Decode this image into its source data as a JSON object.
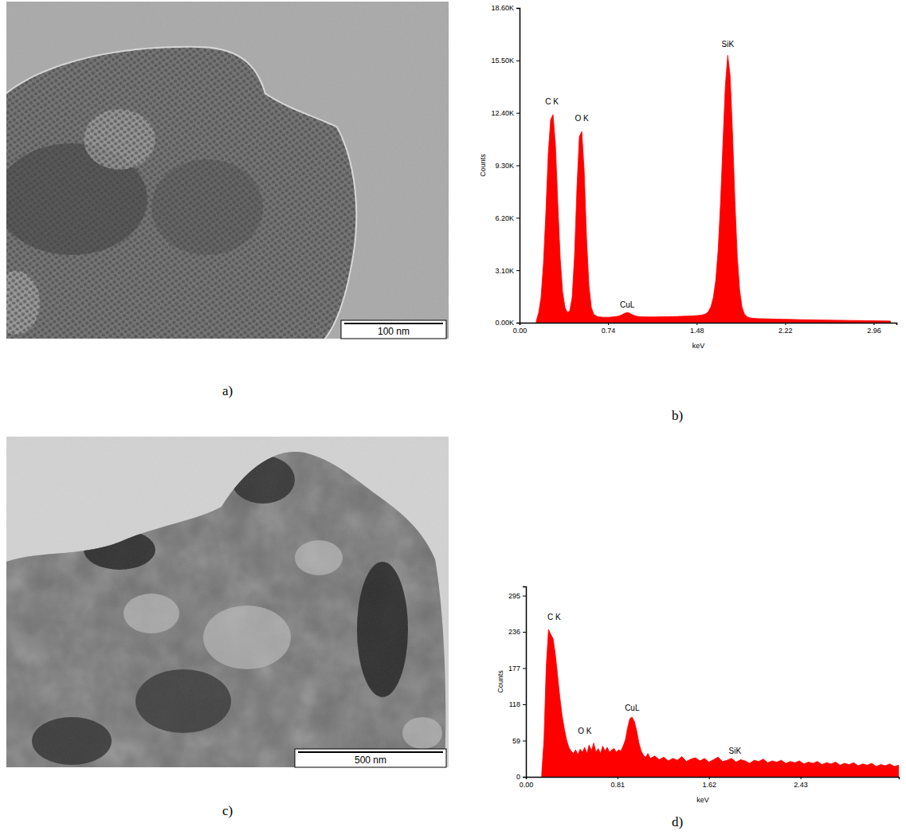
{
  "chart_data": [
    {
      "type": "area",
      "title": "b)",
      "xlabel": "keV",
      "ylabel": "Counts",
      "color": "#ff0000",
      "grid": false,
      "xlim": [
        0,
        3.15
      ],
      "ylim": [
        0,
        18600
      ],
      "xticks": [
        {
          "value": 0,
          "label": "0.00"
        },
        0.74,
        1.48,
        2.22,
        2.96
      ],
      "yticks": [
        {
          "value": 0,
          "label": "0.00K"
        },
        {
          "value": 3100,
          "label": "3.10K"
        },
        {
          "value": 6200,
          "label": "6.20K"
        },
        {
          "value": 9300,
          "label": "9.30K"
        },
        {
          "value": 12400,
          "label": "12.40K"
        },
        {
          "value": 15500,
          "label": "15.50K"
        },
        {
          "value": 18600,
          "label": "18.60K"
        }
      ],
      "x": [
        0.14,
        0.16,
        0.18,
        0.2,
        0.22,
        0.24,
        0.26,
        0.28,
        0.3,
        0.32,
        0.34,
        0.36,
        0.38,
        0.4,
        0.42,
        0.44,
        0.46,
        0.48,
        0.5,
        0.52,
        0.54,
        0.56,
        0.58,
        0.6,
        0.62,
        0.64,
        0.66,
        0.68,
        0.7,
        0.72,
        0.74,
        0.76,
        0.78,
        0.8,
        0.82,
        0.84,
        0.86,
        0.88,
        0.9,
        0.92,
        0.94,
        0.96,
        0.98,
        1.0,
        1.02,
        1.04,
        1.06,
        1.08,
        1.1,
        1.12,
        1.14,
        1.16,
        1.18,
        1.2,
        1.22,
        1.24,
        1.26,
        1.28,
        1.3,
        1.32,
        1.34,
        1.36,
        1.38,
        1.4,
        1.42,
        1.44,
        1.46,
        1.48,
        1.5,
        1.52,
        1.54,
        1.56,
        1.58,
        1.6,
        1.62,
        1.64,
        1.66,
        1.68,
        1.7,
        1.72,
        1.74,
        1.76,
        1.78,
        1.8,
        1.82,
        1.84,
        1.86,
        1.88,
        1.9,
        1.92,
        1.94,
        1.96,
        1.98,
        2.0,
        2.05,
        2.1,
        2.15,
        2.2,
        2.25,
        2.3,
        2.35,
        2.4,
        2.45,
        2.5,
        2.55,
        2.6,
        2.65,
        2.7,
        2.75,
        2.8,
        2.85,
        2.9,
        2.95,
        3.0,
        3.05,
        3.1
      ],
      "values": [
        100,
        600,
        1500,
        3500,
        6500,
        10000,
        12000,
        12300,
        10500,
        7000,
        3800,
        1800,
        900,
        600,
        700,
        1500,
        4000,
        8000,
        11000,
        11300,
        9000,
        5000,
        2200,
        900,
        500,
        400,
        350,
        330,
        320,
        320,
        320,
        330,
        340,
        360,
        380,
        420,
        480,
        560,
        600,
        560,
        480,
        420,
        380,
        360,
        350,
        345,
        345,
        340,
        340,
        340,
        345,
        345,
        350,
        350,
        355,
        355,
        360,
        360,
        365,
        370,
        375,
        380,
        385,
        390,
        395,
        400,
        410,
        420,
        430,
        450,
        480,
        540,
        680,
        950,
        1500,
        2500,
        4300,
        7100,
        10600,
        14000,
        15800,
        14600,
        11200,
        7200,
        3900,
        1900,
        900,
        500,
        360,
        300,
        270,
        255,
        245,
        240,
        230,
        220,
        210,
        205,
        195,
        190,
        180,
        175,
        170,
        160,
        155,
        150,
        145,
        140,
        135,
        130,
        125,
        120,
        115,
        110,
        105,
        100
      ],
      "annotations": [
        {
          "text": "C K",
          "x": 0.27,
          "y": 12900
        },
        {
          "text": "O K",
          "x": 0.52,
          "y": 11900
        },
        {
          "text": "CuL",
          "x": 0.9,
          "y": 900
        },
        {
          "text": "SiK",
          "x": 1.74,
          "y": 16300
        }
      ]
    },
    {
      "type": "area",
      "title": "d)",
      "xlabel": "keV",
      "ylabel": "Counts",
      "color": "#ff0000",
      "grid": false,
      "xlim": [
        0,
        3.3
      ],
      "ylim": [
        0,
        310
      ],
      "xticks": [
        {
          "value": 0,
          "label": "0.00"
        },
        0.81,
        1.62,
        2.43
      ],
      "yticks": [
        0,
        59,
        118,
        177,
        236,
        295
      ],
      "x": [
        0.14,
        0.16,
        0.18,
        0.2,
        0.22,
        0.24,
        0.26,
        0.28,
        0.3,
        0.32,
        0.34,
        0.36,
        0.38,
        0.4,
        0.42,
        0.44,
        0.46,
        0.48,
        0.5,
        0.52,
        0.54,
        0.56,
        0.58,
        0.6,
        0.62,
        0.64,
        0.66,
        0.68,
        0.7,
        0.72,
        0.74,
        0.76,
        0.78,
        0.8,
        0.82,
        0.84,
        0.86,
        0.88,
        0.9,
        0.92,
        0.94,
        0.96,
        0.98,
        1.0,
        1.02,
        1.04,
        1.06,
        1.08,
        1.1,
        1.14,
        1.18,
        1.22,
        1.26,
        1.3,
        1.34,
        1.38,
        1.42,
        1.46,
        1.5,
        1.54,
        1.58,
        1.62,
        1.66,
        1.7,
        1.74,
        1.78,
        1.82,
        1.86,
        1.9,
        1.94,
        1.98,
        2.02,
        2.06,
        2.1,
        2.14,
        2.18,
        2.22,
        2.26,
        2.3,
        2.34,
        2.38,
        2.42,
        2.46,
        2.5,
        2.54,
        2.58,
        2.62,
        2.66,
        2.7,
        2.74,
        2.78,
        2.82,
        2.86,
        2.9,
        2.94,
        2.98,
        3.02,
        3.06,
        3.1,
        3.14,
        3.18,
        3.22,
        3.26,
        3.3
      ],
      "values": [
        5,
        60,
        180,
        240,
        232,
        225,
        200,
        165,
        130,
        100,
        78,
        60,
        48,
        42,
        38,
        44,
        36,
        45,
        40,
        48,
        38,
        52,
        42,
        55,
        40,
        46,
        38,
        50,
        42,
        48,
        40,
        44,
        46,
        40,
        44,
        42,
        50,
        60,
        80,
        95,
        97,
        90,
        75,
        55,
        42,
        35,
        32,
        38,
        30,
        34,
        28,
        32,
        26,
        30,
        27,
        33,
        25,
        29,
        31,
        26,
        30,
        24,
        28,
        32,
        25,
        27,
        30,
        24,
        28,
        26,
        22,
        27,
        25,
        29,
        23,
        26,
        24,
        27,
        22,
        25,
        23,
        26,
        21,
        24,
        22,
        25,
        20,
        23,
        21,
        24,
        19,
        22,
        20,
        23,
        18,
        21,
        19,
        22,
        17,
        20,
        18,
        21,
        17,
        19
      ],
      "annotations": [
        {
          "text": "C K",
          "x": 0.25,
          "y": 256
        },
        {
          "text": "O K",
          "x": 0.52,
          "y": 70
        },
        {
          "text": "CuL",
          "x": 0.94,
          "y": 108
        },
        {
          "text": "SiK",
          "x": 1.85,
          "y": 38
        }
      ]
    }
  ],
  "images": [
    {
      "label": "a)",
      "scale_bar": "100 nm"
    },
    {
      "label": "c)",
      "scale_bar": "500 nm"
    }
  ]
}
